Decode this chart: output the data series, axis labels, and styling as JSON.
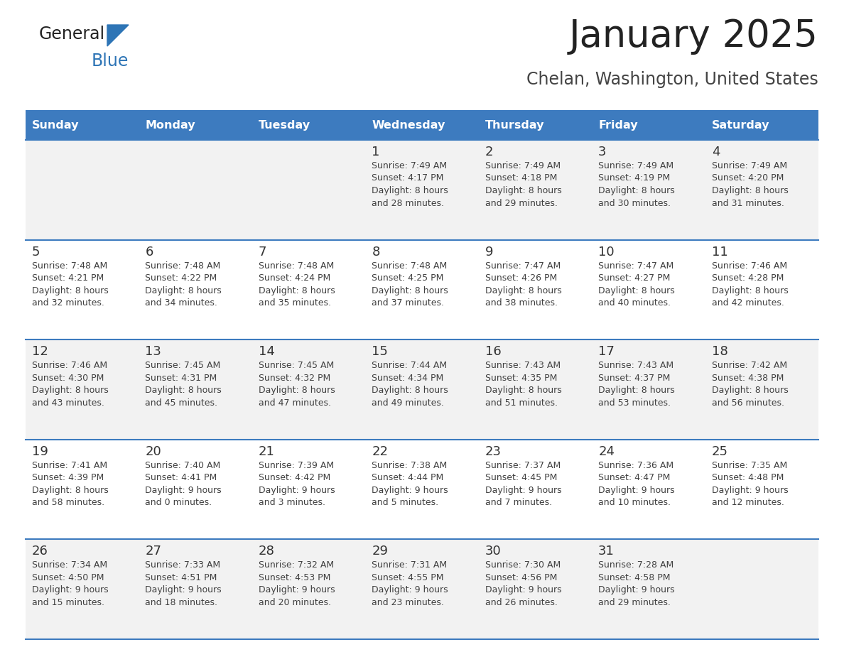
{
  "title": "January 2025",
  "subtitle": "Chelan, Washington, United States",
  "days_of_week": [
    "Sunday",
    "Monday",
    "Tuesday",
    "Wednesday",
    "Thursday",
    "Friday",
    "Saturday"
  ],
  "header_bg": "#3D7BBF",
  "header_text": "#FFFFFF",
  "row_bg_odd": "#F2F2F2",
  "row_bg_even": "#FFFFFF",
  "cell_text_color": "#404040",
  "day_num_color": "#333333",
  "divider_color": "#3D7BBF",
  "logo_general_color": "#222222",
  "logo_blue_color": "#2E75B6",
  "logo_triangle_color": "#2E75B6",
  "title_color": "#222222",
  "subtitle_color": "#444444",
  "calendar_data": [
    [
      null,
      null,
      null,
      {
        "day": 1,
        "sunrise": "7:49 AM",
        "sunset": "4:17 PM",
        "daylight": "8 hours",
        "daylight2": "and 28 minutes."
      },
      {
        "day": 2,
        "sunrise": "7:49 AM",
        "sunset": "4:18 PM",
        "daylight": "8 hours",
        "daylight2": "and 29 minutes."
      },
      {
        "day": 3,
        "sunrise": "7:49 AM",
        "sunset": "4:19 PM",
        "daylight": "8 hours",
        "daylight2": "and 30 minutes."
      },
      {
        "day": 4,
        "sunrise": "7:49 AM",
        "sunset": "4:20 PM",
        "daylight": "8 hours",
        "daylight2": "and 31 minutes."
      }
    ],
    [
      {
        "day": 5,
        "sunrise": "7:48 AM",
        "sunset": "4:21 PM",
        "daylight": "8 hours",
        "daylight2": "and 32 minutes."
      },
      {
        "day": 6,
        "sunrise": "7:48 AM",
        "sunset": "4:22 PM",
        "daylight": "8 hours",
        "daylight2": "and 34 minutes."
      },
      {
        "day": 7,
        "sunrise": "7:48 AM",
        "sunset": "4:24 PM",
        "daylight": "8 hours",
        "daylight2": "and 35 minutes."
      },
      {
        "day": 8,
        "sunrise": "7:48 AM",
        "sunset": "4:25 PM",
        "daylight": "8 hours",
        "daylight2": "and 37 minutes."
      },
      {
        "day": 9,
        "sunrise": "7:47 AM",
        "sunset": "4:26 PM",
        "daylight": "8 hours",
        "daylight2": "and 38 minutes."
      },
      {
        "day": 10,
        "sunrise": "7:47 AM",
        "sunset": "4:27 PM",
        "daylight": "8 hours",
        "daylight2": "and 40 minutes."
      },
      {
        "day": 11,
        "sunrise": "7:46 AM",
        "sunset": "4:28 PM",
        "daylight": "8 hours",
        "daylight2": "and 42 minutes."
      }
    ],
    [
      {
        "day": 12,
        "sunrise": "7:46 AM",
        "sunset": "4:30 PM",
        "daylight": "8 hours",
        "daylight2": "and 43 minutes."
      },
      {
        "day": 13,
        "sunrise": "7:45 AM",
        "sunset": "4:31 PM",
        "daylight": "8 hours",
        "daylight2": "and 45 minutes."
      },
      {
        "day": 14,
        "sunrise": "7:45 AM",
        "sunset": "4:32 PM",
        "daylight": "8 hours",
        "daylight2": "and 47 minutes."
      },
      {
        "day": 15,
        "sunrise": "7:44 AM",
        "sunset": "4:34 PM",
        "daylight": "8 hours",
        "daylight2": "and 49 minutes."
      },
      {
        "day": 16,
        "sunrise": "7:43 AM",
        "sunset": "4:35 PM",
        "daylight": "8 hours",
        "daylight2": "and 51 minutes."
      },
      {
        "day": 17,
        "sunrise": "7:43 AM",
        "sunset": "4:37 PM",
        "daylight": "8 hours",
        "daylight2": "and 53 minutes."
      },
      {
        "day": 18,
        "sunrise": "7:42 AM",
        "sunset": "4:38 PM",
        "daylight": "8 hours",
        "daylight2": "and 56 minutes."
      }
    ],
    [
      {
        "day": 19,
        "sunrise": "7:41 AM",
        "sunset": "4:39 PM",
        "daylight": "8 hours",
        "daylight2": "and 58 minutes."
      },
      {
        "day": 20,
        "sunrise": "7:40 AM",
        "sunset": "4:41 PM",
        "daylight": "9 hours",
        "daylight2": "and 0 minutes."
      },
      {
        "day": 21,
        "sunrise": "7:39 AM",
        "sunset": "4:42 PM",
        "daylight": "9 hours",
        "daylight2": "and 3 minutes."
      },
      {
        "day": 22,
        "sunrise": "7:38 AM",
        "sunset": "4:44 PM",
        "daylight": "9 hours",
        "daylight2": "and 5 minutes."
      },
      {
        "day": 23,
        "sunrise": "7:37 AM",
        "sunset": "4:45 PM",
        "daylight": "9 hours",
        "daylight2": "and 7 minutes."
      },
      {
        "day": 24,
        "sunrise": "7:36 AM",
        "sunset": "4:47 PM",
        "daylight": "9 hours",
        "daylight2": "and 10 minutes."
      },
      {
        "day": 25,
        "sunrise": "7:35 AM",
        "sunset": "4:48 PM",
        "daylight": "9 hours",
        "daylight2": "and 12 minutes."
      }
    ],
    [
      {
        "day": 26,
        "sunrise": "7:34 AM",
        "sunset": "4:50 PM",
        "daylight": "9 hours",
        "daylight2": "and 15 minutes."
      },
      {
        "day": 27,
        "sunrise": "7:33 AM",
        "sunset": "4:51 PM",
        "daylight": "9 hours",
        "daylight2": "and 18 minutes."
      },
      {
        "day": 28,
        "sunrise": "7:32 AM",
        "sunset": "4:53 PM",
        "daylight": "9 hours",
        "daylight2": "and 20 minutes."
      },
      {
        "day": 29,
        "sunrise": "7:31 AM",
        "sunset": "4:55 PM",
        "daylight": "9 hours",
        "daylight2": "and 23 minutes."
      },
      {
        "day": 30,
        "sunrise": "7:30 AM",
        "sunset": "4:56 PM",
        "daylight": "9 hours",
        "daylight2": "and 26 minutes."
      },
      {
        "day": 31,
        "sunrise": "7:28 AM",
        "sunset": "4:58 PM",
        "daylight": "9 hours",
        "daylight2": "and 29 minutes."
      },
      null
    ]
  ]
}
